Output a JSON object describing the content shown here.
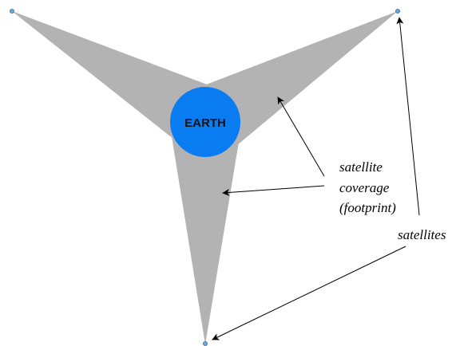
{
  "diagram": {
    "earth": {
      "label": "EARTH",
      "color": "#0a7cf2"
    },
    "footprint_color": "#b3b3b3",
    "satellite_color": "#6aa8e0",
    "annotations": {
      "coverage": [
        "satellite",
        "coverage",
        "(footprint)"
      ],
      "satellites": "satellites"
    }
  }
}
